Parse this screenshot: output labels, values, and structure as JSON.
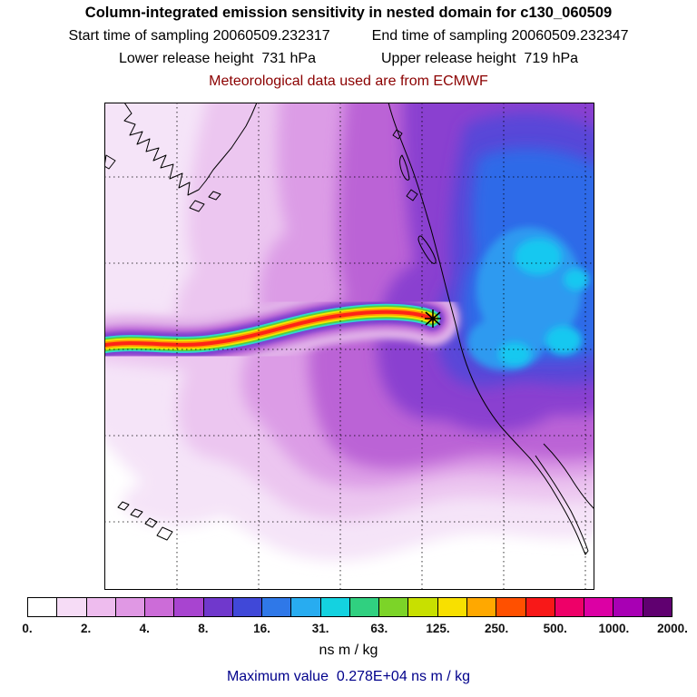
{
  "header": {
    "title": "Column-integrated emission sensitivity in nested domain for c130_060509",
    "start_time": "Start time of sampling 20060509.232317",
    "end_time": "End time of sampling 20060509.232347",
    "lower_release": "Lower release height  731 hPa",
    "upper_release": "Upper release height  719 hPa",
    "met_data": "Meteorological data used are from ECMWF"
  },
  "colors": {
    "met_data_text": "#8b0000",
    "max_value_text": "#00008b",
    "title_text": "#000000"
  },
  "chart_data": {
    "type": "heatmap",
    "title": "Column-integrated emission sensitivity in nested domain for c130_060509",
    "units": "ns m / kg",
    "max_value": "0.278E+04",
    "max_value_label": "Maximum value  0.278E+04 ns m / kg",
    "colorbar": {
      "tick_labels": [
        "0.",
        "2.",
        "4.",
        "8.",
        "16.",
        "31.",
        "63.",
        "125.",
        "250.",
        "500.",
        "1000.",
        "2000."
      ],
      "levels": [
        0,
        1,
        2,
        3,
        4,
        6,
        8,
        12,
        16,
        24,
        31,
        47,
        63,
        94,
        125,
        188,
        250,
        375,
        500,
        750,
        1000,
        1500,
        2000
      ],
      "colors": [
        "#ffffff",
        "#f6dcf6",
        "#eebcee",
        "#e098e4",
        "#cc6cd8",
        "#a844d0",
        "#7038cc",
        "#4048d8",
        "#2f78e8",
        "#28acf0",
        "#14d2e0",
        "#30d080",
        "#7cd428",
        "#c8e000",
        "#f8e000",
        "#ffa800",
        "#ff5000",
        "#f81818",
        "#ee0068",
        "#dc00a4",
        "#a800b4",
        "#600070"
      ]
    },
    "map_features": [
      "Alaska coastline (top left)",
      "North America west coastline with Baja California (right)",
      "Hawaiian Islands (bottom left)",
      "dotted graticule grid",
      "east-west rainbow plume ending at receptor star marker near coast",
      "broad purple-to-blue sensitivity field over northeast Pacific"
    ]
  }
}
